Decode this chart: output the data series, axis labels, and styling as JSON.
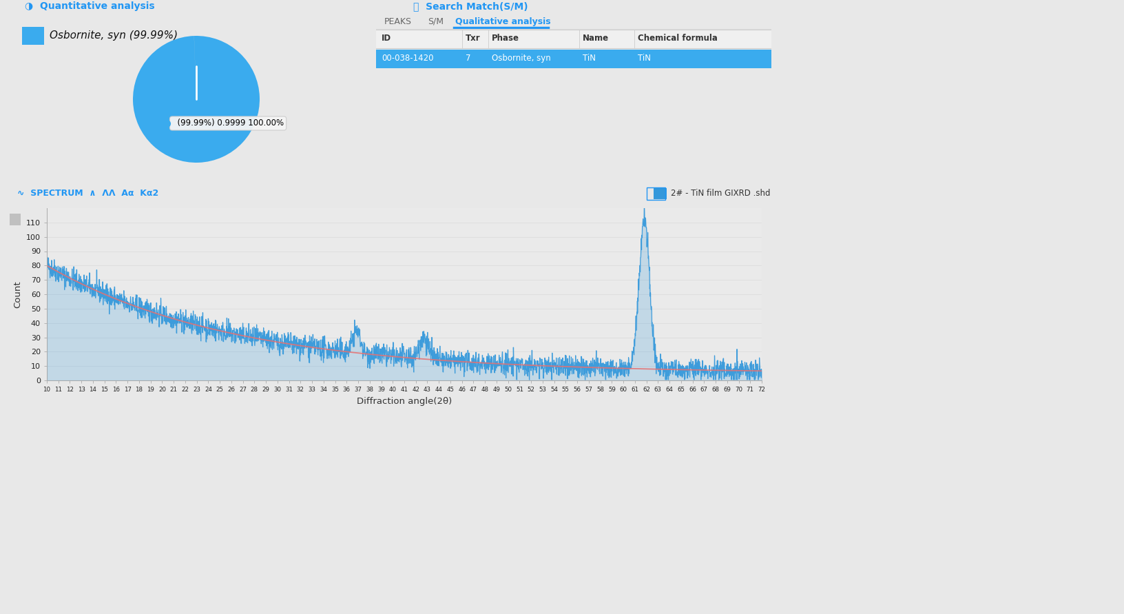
{
  "bg_color": "#e8e8e8",
  "panel_bg": "#ffffff",
  "blue_hdr": "#2196F3",
  "pie_color": "#3aabee",
  "quant_title": "Quantitative analysis",
  "search_title": "Search Match(S/M)",
  "spectrum_label": "SPECTRUM",
  "legend_label": "Osbornite, syn (99.99%)",
  "pie_annotation": "(99.99%) 0.9999 100.00%",
  "tab_peaks": "PEAKS",
  "tab_sm": "S/M",
  "tab_qual": "Qualitative analysis",
  "table_headers": [
    "ID",
    "Txr",
    "Phase",
    "Name",
    "Chemical formula"
  ],
  "table_row_id": "00-038-1420",
  "table_row_txr": "7",
  "table_row_phase": "Osbornite, syn",
  "table_row_name": "TiN",
  "table_row_formula": "TiN",
  "table_row_bg": "#3aabee",
  "legend_spectrum": "2# - TiN film GIXRD .shd",
  "spectrum_blue": "#3498db",
  "baseline_red": "#e87070",
  "y_label": "Count",
  "x_label": "Diffraction angle(2θ)",
  "xlim": [
    10,
    72
  ],
  "ylim": [
    0,
    120
  ],
  "y_ticks": [
    0,
    10,
    20,
    30,
    40,
    50,
    60,
    70,
    80,
    90,
    100,
    110
  ],
  "sidebar_color": "#7a8a9a",
  "header_strip_color": "#d8d8d8",
  "spectrum_area_bg": "#e0e0e0",
  "scrollbar_color": "#b0b8c0"
}
